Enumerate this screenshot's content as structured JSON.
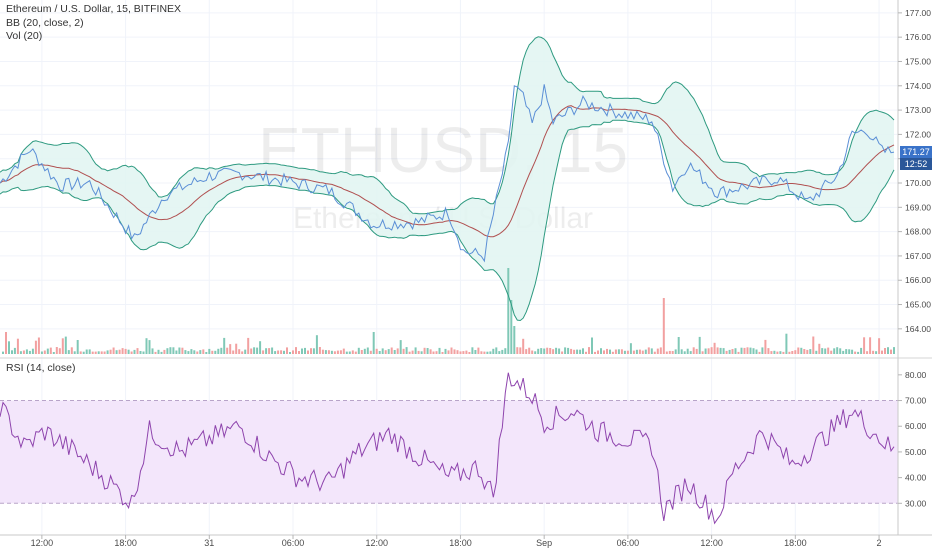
{
  "chart_data": {
    "type": "line",
    "symbol": "Ethereum / U.S. Dollar, 15, BITFINEX",
    "watermark_symbol": "ETHUSD, 15",
    "watermark_name": "Ethereum / U.S. Dollar",
    "bb_label": "BB (20, close, 2)",
    "vol_label": "Vol (20)",
    "rsi_label": "RSI (14, close)",
    "x_tick_labels": [
      "12:00",
      "18:00",
      "31",
      "06:00",
      "12:00",
      "18:00",
      "Sep",
      "06:00",
      "12:00",
      "18:00",
      "2"
    ],
    "x_tick_index": [
      14,
      42,
      70,
      98,
      126,
      154,
      182,
      210,
      238,
      266,
      294
    ],
    "price_axis": {
      "min": 163.5,
      "max": 177.2,
      "ticks": [
        164,
        165,
        166,
        167,
        168,
        169,
        170,
        171,
        172,
        173,
        174,
        175,
        176,
        177
      ]
    },
    "rsi_axis": {
      "min": 20,
      "max": 85,
      "ticks": [
        30,
        40,
        50,
        60,
        70,
        80
      ],
      "band_upper": 70,
      "band_lower": 30
    },
    "last_price": "171.27",
    "countdown": "12:52",
    "colors": {
      "price_line": "#5b8fd6",
      "bb_basis": "#b05050",
      "bb_band": "#2e9a80",
      "bb_fill": "#e0f4f1",
      "rsi_line": "#8e44ad",
      "rsi_fill": "#f3e6fb",
      "vol_up": "#7fc8b6",
      "vol_down": "#f2a0a0",
      "price_tag": "#3a73c9",
      "countdown_tag": "#2a5799"
    },
    "price_keys": [
      [
        0,
        170.0
      ],
      [
        10,
        171.4
      ],
      [
        20,
        169.9
      ],
      [
        30,
        170.0
      ],
      [
        45,
        167.7
      ],
      [
        55,
        169.5
      ],
      [
        70,
        170.3
      ],
      [
        80,
        170.4
      ],
      [
        95,
        170.1
      ],
      [
        110,
        169.7
      ],
      [
        125,
        168.3
      ],
      [
        140,
        168.4
      ],
      [
        150,
        168.8
      ],
      [
        155,
        167.2
      ],
      [
        162,
        167.0
      ],
      [
        170,
        171.5
      ],
      [
        172,
        174.0
      ],
      [
        175,
        173.5
      ],
      [
        178,
        172.4
      ],
      [
        182,
        173.8
      ],
      [
        185,
        172.5
      ],
      [
        195,
        173.3
      ],
      [
        210,
        172.8
      ],
      [
        218,
        172.6
      ],
      [
        225,
        169.8
      ],
      [
        230,
        170.8
      ],
      [
        240,
        169.6
      ],
      [
        250,
        169.9
      ],
      [
        260,
        170.2
      ],
      [
        270,
        169.2
      ],
      [
        280,
        170.3
      ],
      [
        285,
        172.0
      ],
      [
        290,
        172.2
      ],
      [
        295,
        171.3
      ],
      [
        299,
        171.27
      ]
    ],
    "rsi_keys": [
      [
        0,
        68
      ],
      [
        8,
        52
      ],
      [
        15,
        58
      ],
      [
        25,
        50
      ],
      [
        35,
        40
      ],
      [
        44,
        30
      ],
      [
        50,
        58
      ],
      [
        60,
        50
      ],
      [
        70,
        55
      ],
      [
        80,
        60
      ],
      [
        90,
        48
      ],
      [
        100,
        40
      ],
      [
        110,
        38
      ],
      [
        120,
        50
      ],
      [
        130,
        57
      ],
      [
        140,
        48
      ],
      [
        150,
        40
      ],
      [
        160,
        44
      ],
      [
        165,
        33
      ],
      [
        170,
        80
      ],
      [
        178,
        72
      ],
      [
        182,
        62
      ],
      [
        192,
        66
      ],
      [
        200,
        58
      ],
      [
        210,
        55
      ],
      [
        218,
        53
      ],
      [
        222,
        27
      ],
      [
        230,
        38
      ],
      [
        240,
        24
      ],
      [
        245,
        42
      ],
      [
        255,
        58
      ],
      [
        265,
        45
      ],
      [
        275,
        55
      ],
      [
        285,
        66
      ],
      [
        292,
        58
      ],
      [
        299,
        50
      ]
    ]
  }
}
